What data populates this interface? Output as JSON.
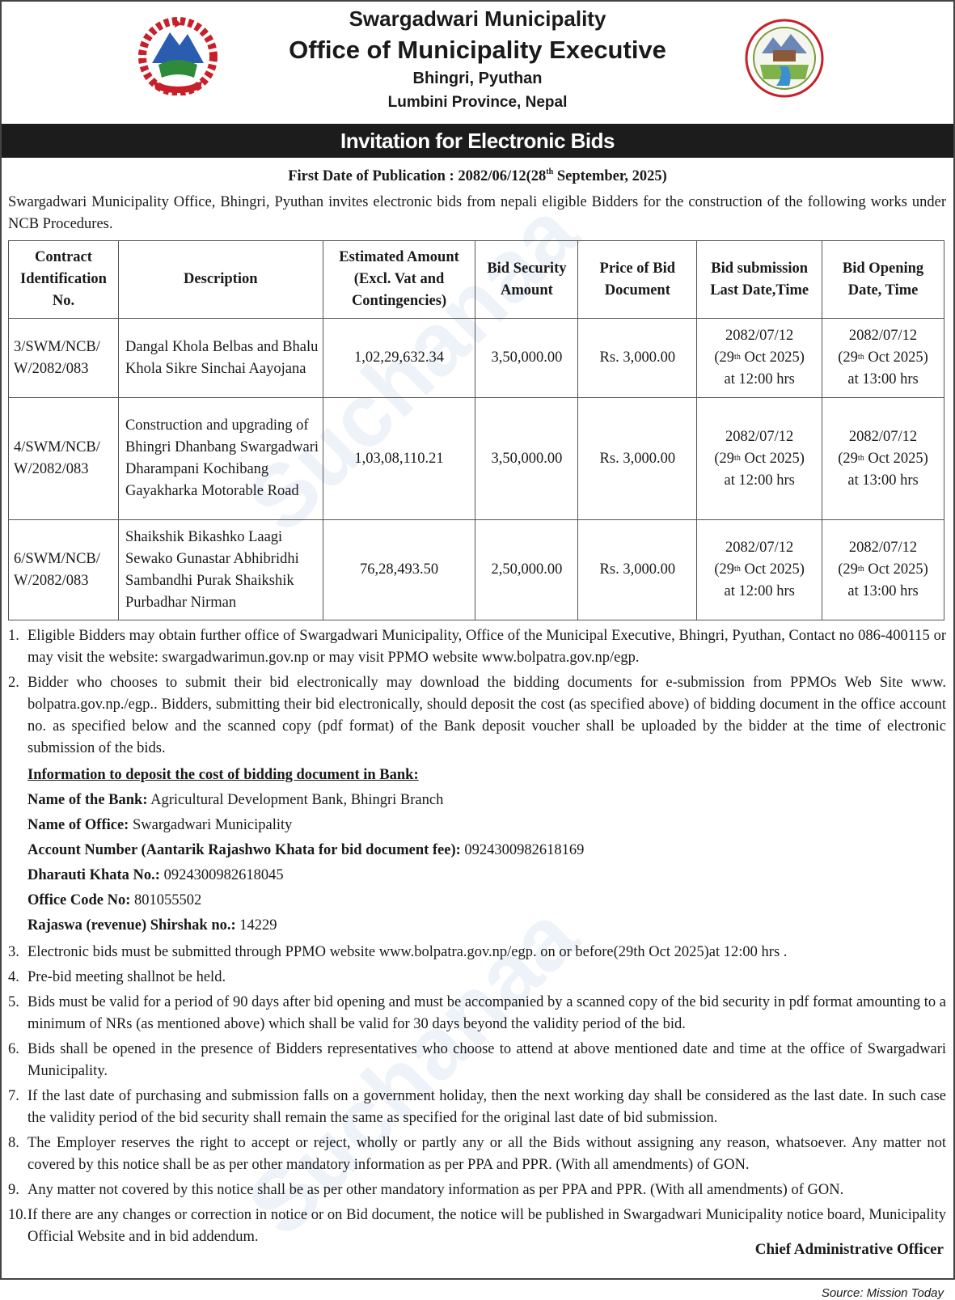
{
  "header": {
    "line1": "Swargadwari Municipality",
    "line2": "Office of Municipality Executive",
    "line3": "Bhingri, Pyuthan",
    "line4": "Lumbini Province, Nepal"
  },
  "logos": {
    "left": "nepal-emblem",
    "right": "municipality-logo"
  },
  "banner": "Invitation for Electronic Bids",
  "publication": {
    "label": "First Date of Publication : 2082/06/12(28",
    "sup": "th",
    "rest": " September, 2025)"
  },
  "intro": "Swargadwari Municipality Office, Bhingri, Pyuthan invites electronic bids from nepali eligible Bidders for the construction of the following works under NCB Procedures.",
  "table": {
    "headers": [
      "Contract Identification No.",
      "Description",
      "Estimated Amount (Excl. Vat and Contingencies)",
      "Bid Security Amount",
      "Price of Bid Document",
      "Bid submission Last Date,Time",
      "Bid Opening Date, Time"
    ],
    "rows": [
      {
        "id": "3/SWM/NCB/ W/2082/083",
        "desc": "Dangal Khola Belbas and Bhalu Khola Sikre Sinchai Aayojana",
        "amount": "1,02,29,632.34",
        "security": "3,50,000.00",
        "price": "Rs. 3,000.00",
        "sub_date": "2082/07/12",
        "sub_day": "(29",
        "sub_rest": " Oct 2025)",
        "sub_time": "at 12:00 hrs",
        "open_date": "2082/07/12",
        "open_day": "(29",
        "open_rest": " Oct 2025)",
        "open_time": "at 13:00 hrs",
        "sup": "th"
      },
      {
        "id": "4/SWM/NCB/ W/2082/083",
        "desc": "Construction and upgrading of Bhingri Dhanbang Swargadwari Dharampani Kochibang Gayakharka Motorable Road",
        "amount": "1,03,08,110.21",
        "security": "3,50,000.00",
        "price": "Rs. 3,000.00",
        "sub_date": "2082/07/12",
        "sub_day": "(29",
        "sub_rest": " Oct 2025)",
        "sub_time": "at 12:00 hrs",
        "open_date": "2082/07/12",
        "open_day": "(29",
        "open_rest": " Oct 2025)",
        "open_time": "at 13:00 hrs",
        "sup": "th"
      },
      {
        "id": "6/SWM/NCB/ W/2082/083",
        "desc": "Shaikshik Bikashko Laagi Sewako Gunastar Abhibridhi Sambandhi Purak Shaikshik Purbadhar Nirman",
        "amount": "76,28,493.50",
        "security": "2,50,000.00",
        "price": "Rs. 3,000.00",
        "sub_date": "2082/07/12",
        "sub_day": "(29",
        "sub_rest": " Oct 2025)",
        "sub_time": "at 12:00 hrs",
        "open_date": "2082/07/12",
        "open_day": "(29",
        "open_rest": " Oct 2025)",
        "open_time": "at 13:00 hrs",
        "sup": "th"
      }
    ]
  },
  "items": [
    {
      "n": "1.",
      "text": "Eligible Bidders may obtain further office of Swargadwari Municipality, Office of the Municipal Executive, Bhingri, Pyuthan, Contact no 086-400115 or may visit the website: swargadwarimun.gov.np or may visit PPMO website www.bolpatra.gov.np/egp."
    },
    {
      "n": "2.",
      "text": "Bidder who chooses to submit their bid electronically may download the bidding documents for e-submission from PPMOs Web Site www. bolpatra.gov.np./egp.. Bidders, submitting their bid electronically, should deposit the cost (as specified above) of bidding document in the office account no. as specified below and the scanned copy (pdf format) of the Bank deposit voucher shall be uploaded by the bidder at the time of electronic submission of the bids."
    },
    {
      "n": "3.",
      "text": "Electronic bids must be submitted through PPMO website www.bolpatra.gov.np/egp. on or before(29th Oct 2025)at 12:00 hrs ."
    },
    {
      "n": "4.",
      "text": "Pre-bid meeting shallnot be held."
    },
    {
      "n": "5.",
      "text": "Bids must be valid for a period of 90 days after bid opening and must be accompanied by a scanned copy of the bid security in pdf format amounting to a minimum of NRs (as mentioned above) which shall be valid for 30 days beyond the validity period of the bid."
    },
    {
      "n": "6.",
      "text": "Bids shall be opened in the presence of Bidders representatives who choose to attend at above mentioned date and time at the office of Swargadwari Municipality."
    },
    {
      "n": "7.",
      "text": "If the last date of purchasing and submission falls on a government holiday, then the next working day shall be considered as the last date. In such case the validity period of the bid security shall remain the same as specified for the original last date of bid submission."
    },
    {
      "n": "8.",
      "text": "The Employer reserves the right to accept or reject, wholly or partly any or all the Bids without assigning any reason, whatsoever. Any matter not covered by this notice shall be as per other mandatory information as per PPA and PPR. (With all amendments) of GON."
    },
    {
      "n": "9.",
      "text": "Any matter not covered by this notice shall be as per other mandatory information as per PPA and PPR. (With all amendments) of GON."
    },
    {
      "n": "10.",
      "text": "If there are any changes or correction in notice or on Bid document, the notice will be published in Swargadwari Municipality notice board, Municipality Official Website and in bid addendum."
    }
  ],
  "bank": {
    "heading": "Information to deposit the cost of bidding document in Bank:",
    "fields": [
      {
        "label": "Name of the Bank:",
        "value": " Agricultural Development Bank, Bhingri Branch"
      },
      {
        "label": "Name of Office:",
        "value": " Swargadwari Municipality"
      },
      {
        "label": "Account Number (Aantarik Rajashwo Khata for bid document fee):",
        "value": " 0924300982618169"
      },
      {
        "label": "Dharauti Khata No.:",
        "value": " 0924300982618045"
      },
      {
        "label": "Office Code No:",
        "value": " 801055502"
      },
      {
        "label": "Rajaswa (revenue) Shirshak no.:",
        "value": " 14229"
      }
    ]
  },
  "signature": "Chief Administrative Officer",
  "source": "Source: Mission Today",
  "watermark": "Suchanaa"
}
